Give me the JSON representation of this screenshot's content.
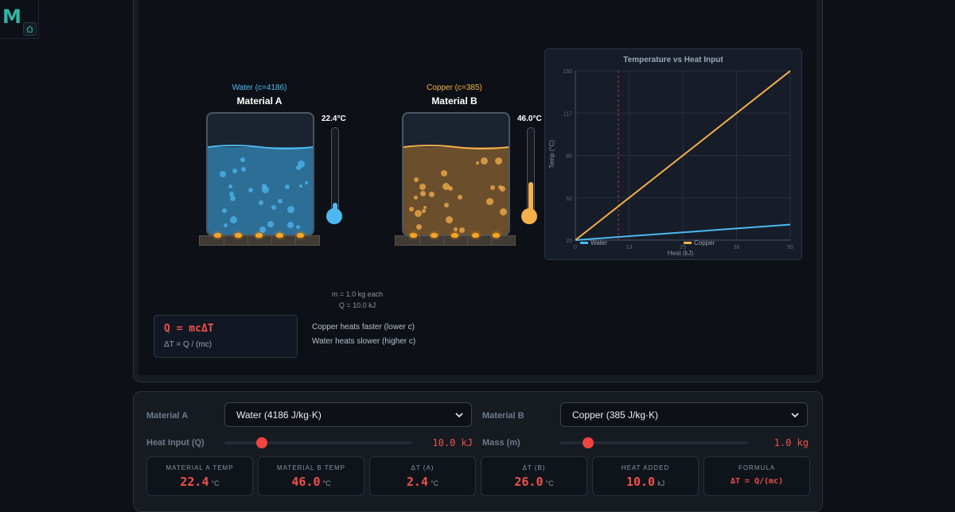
{
  "app": {
    "logo_letter": "M"
  },
  "materialA": {
    "subtitle": "Water (c=4186)",
    "title": "Material A",
    "temp": "22.4°C",
    "color": "#4db8f0"
  },
  "materialB": {
    "subtitle": "Copper (c=385)",
    "title": "Material B",
    "temp": "46.0°C",
    "color": "#f5b04a"
  },
  "info": {
    "mass": "m = 1.0 kg each",
    "heat": "Q = 10.0 kJ"
  },
  "formula": {
    "main": "Q = mcΔT",
    "sub": "ΔT = Q / (mc)"
  },
  "notes": {
    "copper": "Copper heats faster (lower c)",
    "water": "Water heats slower (higher c)"
  },
  "chart_data": {
    "type": "line",
    "title": "Temperature vs Heat Input",
    "xlabel": "Heat (kJ)",
    "ylabel": "Temp (°C)",
    "xlim": [
      0,
      50
    ],
    "ylim": [
      20,
      150
    ],
    "xticks": [
      "0",
      "13",
      "25",
      "38",
      "50"
    ],
    "yticks": [
      "20",
      "52",
      "85",
      "117",
      "150"
    ],
    "marker_x": 10,
    "series": [
      {
        "name": "Water",
        "color": "#4db8f0",
        "x": [
          0,
          50
        ],
        "y": [
          20,
          31.9
        ]
      },
      {
        "name": "Copper",
        "color": "#f5b04a",
        "x": [
          0,
          50
        ],
        "y": [
          20,
          149.9
        ]
      }
    ],
    "grid": true,
    "legend": "bottom"
  },
  "controls": {
    "materialA_label": "Material A",
    "materialA_value": "Water (4186 J/kg·K)",
    "materialB_label": "Material B",
    "materialB_value": "Copper (385 J/kg·K)",
    "heat_label": "Heat Input (Q)",
    "heat_value": "10.0 kJ",
    "heat_fraction": 0.2,
    "mass_label": "Mass (m)",
    "mass_value": "1.0 kg",
    "mass_fraction": 0.15
  },
  "stats": [
    {
      "label": "MATERIAL A TEMP",
      "value": "22.4",
      "unit": "°C"
    },
    {
      "label": "MATERIAL B TEMP",
      "value": "46.0",
      "unit": "°C"
    },
    {
      "label": "ΔT (A)",
      "value": "2.4",
      "unit": "°C"
    },
    {
      "label": "ΔT (B)",
      "value": "26.0",
      "unit": "°C"
    },
    {
      "label": "HEAT ADDED",
      "value": "10.0",
      "unit": "kJ"
    },
    {
      "label": "FORMULA",
      "value": "ΔT = Q/(mc)",
      "unit": ""
    }
  ]
}
